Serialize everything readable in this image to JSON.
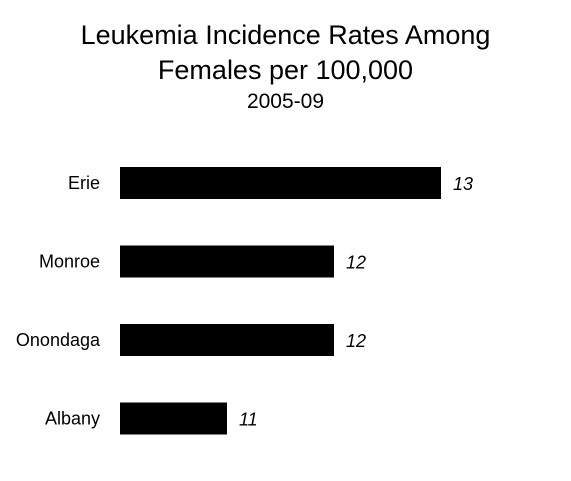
{
  "chart_data": {
    "type": "bar",
    "orientation": "horizontal",
    "title": "Leukemia Incidence Rates Among\nFemales per 100,000",
    "subtitle": "2005-09",
    "categories": [
      "Erie",
      "Monroe",
      "Onondaga",
      "Albany"
    ],
    "values": [
      13,
      12,
      12,
      11
    ],
    "data_labels": [
      "13",
      "12",
      "12",
      "11"
    ],
    "xlabel": "",
    "ylabel": "",
    "grid": false,
    "legend": "none",
    "bar_color": "#000000"
  }
}
